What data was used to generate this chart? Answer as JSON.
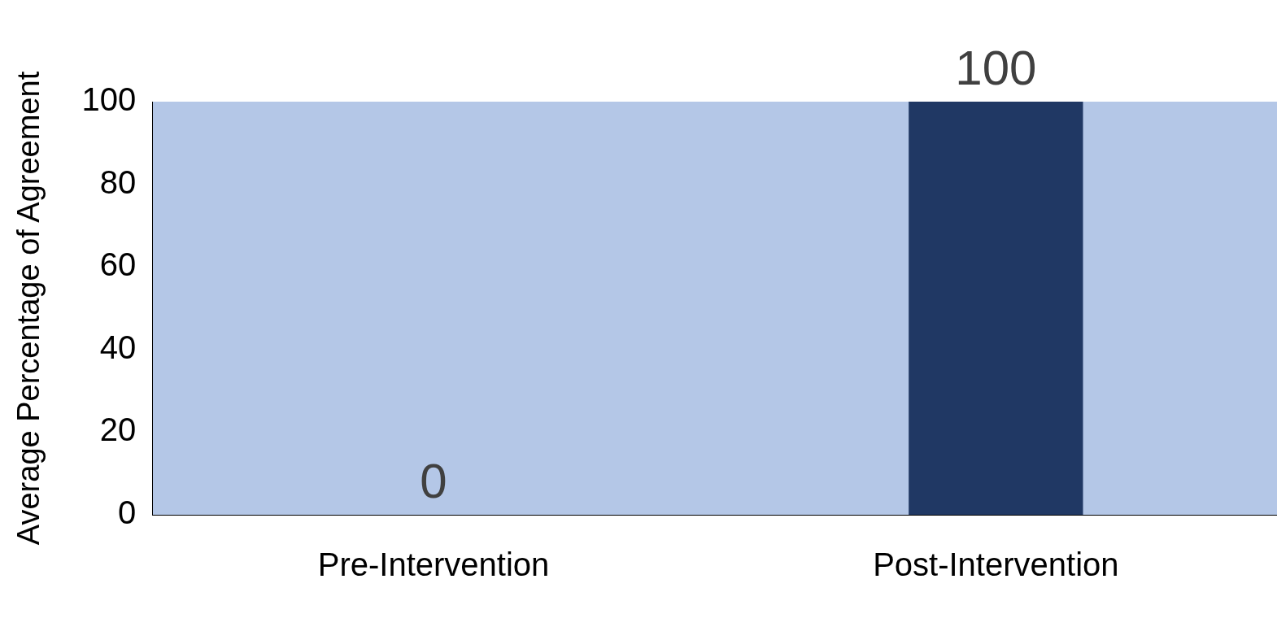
{
  "chart_data": {
    "type": "bar",
    "ylabel": "Average Percentage of Agreement",
    "categories": [
      "Pre-Intervention",
      "Post-Intervention"
    ],
    "values": [
      0,
      100
    ],
    "color": "#203864",
    "ylim": [
      0,
      100
    ],
    "yticks": [
      0,
      20,
      40,
      60,
      80,
      100
    ],
    "grid": false,
    "legend": false,
    "data_labels": true
  }
}
